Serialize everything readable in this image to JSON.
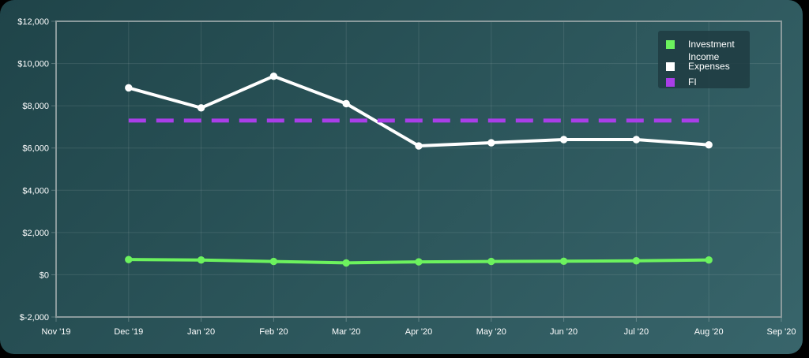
{
  "chart_data": {
    "type": "line",
    "categories": [
      "Nov '19",
      "Dec '19",
      "Jan '20",
      "Feb '20",
      "Mar '20",
      "Apr '20",
      "May '20",
      "Jun '20",
      "Jul '20",
      "Aug '20",
      "Sep '20"
    ],
    "y_ticks": [
      "$12,000",
      "$10,000",
      "$8,000",
      "$6,000",
      "$4,000",
      "$2,000",
      "$0",
      "$-2,000"
    ],
    "ylim": [
      -2000,
      12000
    ],
    "grid": true,
    "legend_position": "top-right",
    "series": [
      {
        "name": "Investment Income",
        "legend_lines": [
          "Investment",
          "Income"
        ],
        "color": "#6cf25e",
        "style": "solid",
        "x": [
          "Dec '19",
          "Jan '20",
          "Feb '20",
          "Mar '20",
          "Apr '20",
          "May '20",
          "Jun '20",
          "Jul '20",
          "Aug '20"
        ],
        "values": [
          720,
          700,
          630,
          560,
          610,
          630,
          640,
          660,
          700
        ]
      },
      {
        "name": "Expenses",
        "legend_lines": [
          "Expenses"
        ],
        "color": "#ffffff",
        "style": "solid",
        "x": [
          "Dec '19",
          "Jan '20",
          "Feb '20",
          "Mar '20",
          "Apr '20",
          "May '20",
          "Jun '20",
          "Jul '20",
          "Aug '20"
        ],
        "values": [
          8850,
          7900,
          9400,
          8100,
          6100,
          6250,
          6400,
          6400,
          6150
        ]
      },
      {
        "name": "FI",
        "legend_lines": [
          "FI"
        ],
        "color": "#a93ee8",
        "style": "dashed",
        "x": [
          "Dec '19",
          "Aug '20"
        ],
        "values": [
          7300,
          7300
        ]
      }
    ]
  }
}
